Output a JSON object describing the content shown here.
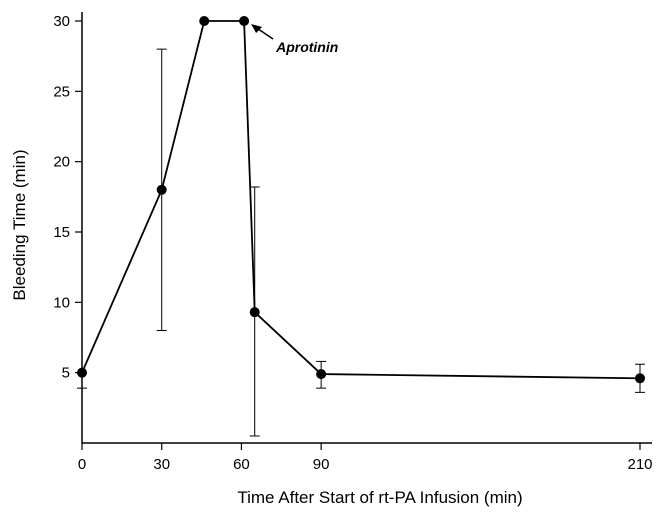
{
  "chart_data": {
    "type": "line",
    "xlabel": "Time After Start of rt-PA Infusion (min)",
    "ylabel": "Bleeding Time (min)",
    "xlim": [
      0,
      210
    ],
    "ylim": [
      0,
      30
    ],
    "x_ticks": [
      0,
      30,
      60,
      90,
      210
    ],
    "y_ticks": [
      5,
      10,
      15,
      20,
      25,
      30
    ],
    "x_tick_labels": [
      "0",
      "30",
      "60",
      "90",
      "210"
    ],
    "y_tick_labels": [
      "5",
      "10",
      "15",
      "20",
      "25",
      "30"
    ],
    "grid": false,
    "legend": "none",
    "series": [
      {
        "x": [
          0,
          30,
          46,
          61,
          65,
          90,
          210
        ],
        "y": [
          5,
          18,
          30,
          30,
          9.3,
          4.9,
          4.6
        ],
        "error_high": [
          null,
          28,
          null,
          null,
          18.2,
          5.8,
          5.6
        ],
        "error_low": [
          3.9,
          8,
          null,
          null,
          0.5,
          3.9,
          3.6
        ]
      }
    ],
    "annotations": [
      {
        "text": "Aprotinin",
        "arrow_to_x": 61,
        "arrow_to_y": 30
      }
    ]
  }
}
